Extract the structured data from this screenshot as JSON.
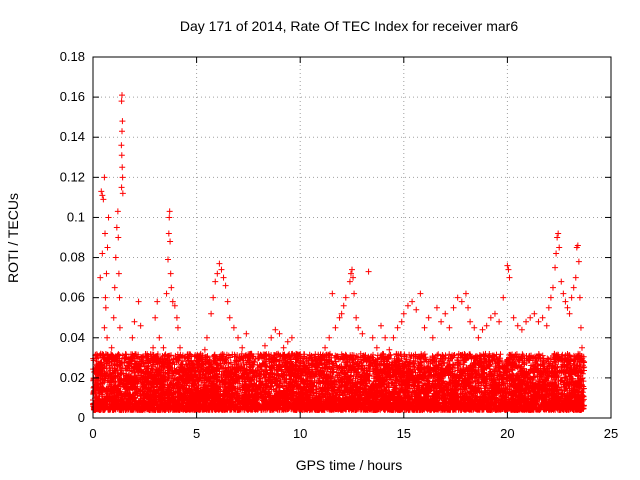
{
  "chart_data": {
    "type": "scatter",
    "title": "Day 171 of 2014, Rate Of TEC Index for receiver mar6",
    "xlabel": "GPS time / hours",
    "ylabel": "ROTI / TECUs",
    "xlim": [
      0,
      25
    ],
    "ylim": [
      0,
      0.18
    ],
    "xticks": [
      0,
      5,
      10,
      15,
      20,
      25
    ],
    "xtick_labels": [
      "0",
      "5",
      "10",
      "15",
      "20",
      "25"
    ],
    "yticks": [
      0,
      0.02,
      0.04,
      0.06,
      0.08,
      0.1,
      0.12,
      0.14,
      0.16,
      0.18
    ],
    "ytick_labels": [
      "0",
      "0.02",
      "0.04",
      "0.06",
      "0.08",
      "0.1",
      "0.12",
      "0.14",
      "0.16",
      "0.18"
    ],
    "grid": true,
    "marker": "+",
    "color": "#ff0000",
    "series": [
      {
        "name": "ROTI",
        "points": [
          [
            0.1,
            0.012
          ],
          [
            0.2,
            0.018
          ],
          [
            0.3,
            0.015
          ],
          [
            0.4,
            0.022
          ],
          [
            0.5,
            0.03
          ],
          [
            0.55,
            0.045
          ],
          [
            0.6,
            0.06
          ],
          [
            0.65,
            0.072
          ],
          [
            0.7,
            0.085
          ],
          [
            0.75,
            0.1
          ],
          [
            0.4,
            0.113
          ],
          [
            0.45,
            0.111
          ],
          [
            0.5,
            0.109
          ],
          [
            0.55,
            0.12
          ],
          [
            0.35,
            0.07
          ],
          [
            0.45,
            0.082
          ],
          [
            0.58,
            0.092
          ],
          [
            0.62,
            0.055
          ],
          [
            0.68,
            0.04
          ],
          [
            0.8,
            0.025
          ],
          [
            0.9,
            0.035
          ],
          [
            1.0,
            0.05
          ],
          [
            1.05,
            0.065
          ],
          [
            1.1,
            0.08
          ],
          [
            1.15,
            0.095
          ],
          [
            1.2,
            0.103
          ],
          [
            1.22,
            0.09
          ],
          [
            1.25,
            0.072
          ],
          [
            1.28,
            0.06
          ],
          [
            1.3,
            0.045
          ],
          [
            1.38,
            0.158
          ],
          [
            1.4,
            0.161
          ],
          [
            1.42,
            0.148
          ],
          [
            1.4,
            0.143
          ],
          [
            1.37,
            0.136
          ],
          [
            1.39,
            0.131
          ],
          [
            1.41,
            0.125
          ],
          [
            1.43,
            0.12
          ],
          [
            1.38,
            0.115
          ],
          [
            1.44,
            0.112
          ],
          [
            1.5,
            0.03
          ],
          [
            1.6,
            0.022
          ],
          [
            1.7,
            0.02
          ],
          [
            1.8,
            0.028
          ],
          [
            1.9,
            0.04
          ],
          [
            2.0,
            0.048
          ],
          [
            2.1,
            0.025
          ],
          [
            2.2,
            0.058
          ],
          [
            2.3,
            0.046
          ],
          [
            2.4,
            0.03
          ],
          [
            2.5,
            0.015
          ],
          [
            2.7,
            0.022
          ],
          [
            2.9,
            0.035
          ],
          [
            3.0,
            0.05
          ],
          [
            3.1,
            0.058
          ],
          [
            3.2,
            0.04
          ],
          [
            3.3,
            0.028
          ],
          [
            3.4,
            0.035
          ],
          [
            3.55,
            0.062
          ],
          [
            3.62,
            0.079
          ],
          [
            3.66,
            0.092
          ],
          [
            3.68,
            0.1
          ],
          [
            3.7,
            0.103
          ],
          [
            3.72,
            0.088
          ],
          [
            3.75,
            0.072
          ],
          [
            3.78,
            0.065
          ],
          [
            3.85,
            0.058
          ],
          [
            3.95,
            0.056
          ],
          [
            4.05,
            0.05
          ],
          [
            4.1,
            0.045
          ],
          [
            4.2,
            0.035
          ],
          [
            4.4,
            0.03
          ],
          [
            4.6,
            0.024
          ],
          [
            4.8,
            0.02
          ],
          [
            5.0,
            0.028
          ],
          [
            5.2,
            0.032
          ],
          [
            5.4,
            0.034
          ],
          [
            5.5,
            0.04
          ],
          [
            5.7,
            0.052
          ],
          [
            5.8,
            0.06
          ],
          [
            5.9,
            0.068
          ],
          [
            6.0,
            0.072
          ],
          [
            6.1,
            0.077
          ],
          [
            6.2,
            0.074
          ],
          [
            6.3,
            0.07
          ],
          [
            6.4,
            0.066
          ],
          [
            6.5,
            0.058
          ],
          [
            6.6,
            0.05
          ],
          [
            6.8,
            0.045
          ],
          [
            7.0,
            0.04
          ],
          [
            7.2,
            0.035
          ],
          [
            7.4,
            0.042
          ],
          [
            7.6,
            0.03
          ],
          [
            7.8,
            0.028
          ],
          [
            8.0,
            0.025
          ],
          [
            8.3,
            0.036
          ],
          [
            8.6,
            0.04
          ],
          [
            8.8,
            0.044
          ],
          [
            9.0,
            0.042
          ],
          [
            9.2,
            0.035
          ],
          [
            9.4,
            0.038
          ],
          [
            9.6,
            0.04
          ],
          [
            9.8,
            0.032
          ],
          [
            10.0,
            0.028
          ],
          [
            10.2,
            0.024
          ],
          [
            10.5,
            0.022
          ],
          [
            10.8,
            0.025
          ],
          [
            11.0,
            0.03
          ],
          [
            11.2,
            0.035
          ],
          [
            11.4,
            0.04
          ],
          [
            11.55,
            0.062
          ],
          [
            11.7,
            0.045
          ],
          [
            11.9,
            0.05
          ],
          [
            12.0,
            0.052
          ],
          [
            12.1,
            0.056
          ],
          [
            12.2,
            0.06
          ],
          [
            12.4,
            0.068
          ],
          [
            12.45,
            0.072
          ],
          [
            12.5,
            0.074
          ],
          [
            12.55,
            0.07
          ],
          [
            12.6,
            0.062
          ],
          [
            12.7,
            0.05
          ],
          [
            12.8,
            0.045
          ],
          [
            13.0,
            0.042
          ],
          [
            13.3,
            0.073
          ],
          [
            13.5,
            0.04
          ],
          [
            13.7,
            0.035
          ],
          [
            13.9,
            0.046
          ],
          [
            14.1,
            0.04
          ],
          [
            14.3,
            0.034
          ],
          [
            14.5,
            0.04
          ],
          [
            14.7,
            0.045
          ],
          [
            14.9,
            0.048
          ],
          [
            15.0,
            0.052
          ],
          [
            15.2,
            0.056
          ],
          [
            15.4,
            0.058
          ],
          [
            15.6,
            0.054
          ],
          [
            15.8,
            0.062
          ],
          [
            16.0,
            0.045
          ],
          [
            16.2,
            0.05
          ],
          [
            16.4,
            0.04
          ],
          [
            16.6,
            0.055
          ],
          [
            16.8,
            0.048
          ],
          [
            17.0,
            0.052
          ],
          [
            17.2,
            0.045
          ],
          [
            17.4,
            0.055
          ],
          [
            17.6,
            0.06
          ],
          [
            17.8,
            0.058
          ],
          [
            18.0,
            0.062
          ],
          [
            18.1,
            0.055
          ],
          [
            18.2,
            0.048
          ],
          [
            18.4,
            0.045
          ],
          [
            18.6,
            0.04
          ],
          [
            18.8,
            0.044
          ],
          [
            19.0,
            0.046
          ],
          [
            19.2,
            0.05
          ],
          [
            19.4,
            0.052
          ],
          [
            19.6,
            0.048
          ],
          [
            19.8,
            0.06
          ],
          [
            20.0,
            0.076
          ],
          [
            20.05,
            0.074
          ],
          [
            20.1,
            0.07
          ],
          [
            20.3,
            0.05
          ],
          [
            20.5,
            0.046
          ],
          [
            20.7,
            0.044
          ],
          [
            20.9,
            0.048
          ],
          [
            21.1,
            0.05
          ],
          [
            21.3,
            0.052
          ],
          [
            21.5,
            0.048
          ],
          [
            21.7,
            0.05
          ],
          [
            21.9,
            0.046
          ],
          [
            22.0,
            0.055
          ],
          [
            22.1,
            0.06
          ],
          [
            22.2,
            0.065
          ],
          [
            22.3,
            0.075
          ],
          [
            22.35,
            0.082
          ],
          [
            22.4,
            0.09
          ],
          [
            22.45,
            0.092
          ],
          [
            22.5,
            0.085
          ],
          [
            22.6,
            0.068
          ],
          [
            22.7,
            0.062
          ],
          [
            22.8,
            0.058
          ],
          [
            22.9,
            0.055
          ],
          [
            23.0,
            0.052
          ],
          [
            23.1,
            0.06
          ],
          [
            23.2,
            0.065
          ],
          [
            23.3,
            0.07
          ],
          [
            23.35,
            0.085
          ],
          [
            23.4,
            0.086
          ],
          [
            23.45,
            0.078
          ],
          [
            23.5,
            0.06
          ],
          [
            23.55,
            0.045
          ],
          [
            23.6,
            0.035
          ],
          [
            23.7,
            0.028
          ]
        ]
      }
    ]
  }
}
